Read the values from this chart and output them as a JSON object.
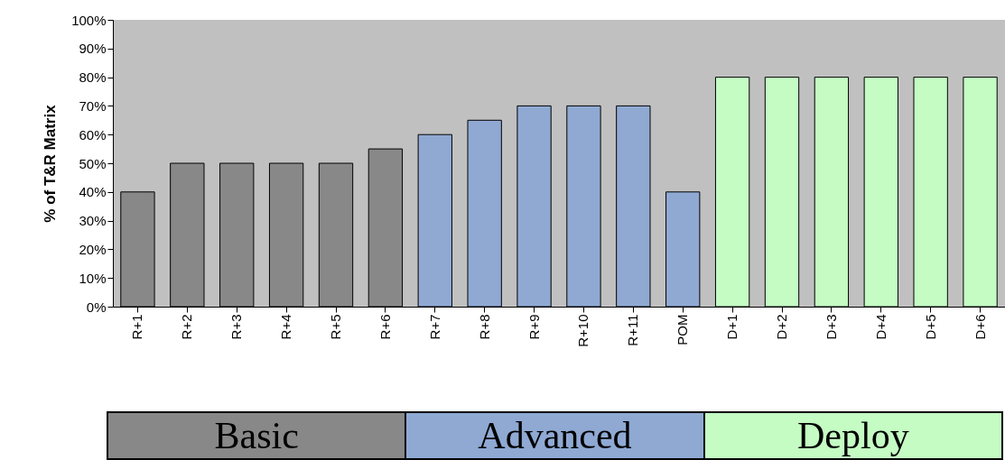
{
  "chart_data": {
    "type": "bar",
    "ylabel": "% of T&R Matrix",
    "categories": [
      "R+1",
      "R+2",
      "R+3",
      "R+4",
      "R+5",
      "R+6",
      "R+7",
      "R+8",
      "R+9",
      "R+10",
      "R+11",
      "POM",
      "D+1",
      "D+2",
      "D+3",
      "D+4",
      "D+5",
      "D+6"
    ],
    "series": [
      {
        "name": "Basic",
        "color": "#888888",
        "values": [
          40,
          50,
          50,
          50,
          50,
          55,
          null,
          null,
          null,
          null,
          null,
          null,
          null,
          null,
          null,
          null,
          null,
          null
        ]
      },
      {
        "name": "Advanced",
        "color": "#8fa9d3",
        "values": [
          null,
          null,
          null,
          null,
          null,
          null,
          60,
          65,
          70,
          70,
          70,
          40,
          null,
          null,
          null,
          null,
          null,
          null
        ]
      },
      {
        "name": "Deploy",
        "color": "#c4fcc4",
        "values": [
          null,
          null,
          null,
          null,
          null,
          null,
          null,
          null,
          null,
          null,
          null,
          null,
          80,
          80,
          80,
          80,
          80,
          80
        ]
      }
    ],
    "ylim": [
      0,
      100
    ],
    "yticks": [
      {
        "value": 0,
        "label": "0%"
      },
      {
        "value": 10,
        "label": "10%"
      },
      {
        "value": 20,
        "label": "20%"
      },
      {
        "value": 30,
        "label": "30%"
      },
      {
        "value": 40,
        "label": "40%"
      },
      {
        "value": 50,
        "label": "50%"
      },
      {
        "value": 60,
        "label": "60%"
      },
      {
        "value": 70,
        "label": "70%"
      },
      {
        "value": 80,
        "label": "80%"
      },
      {
        "value": 90,
        "label": "90%"
      },
      {
        "value": 100,
        "label": "100%"
      }
    ],
    "legend": "bottom",
    "grid": false
  }
}
